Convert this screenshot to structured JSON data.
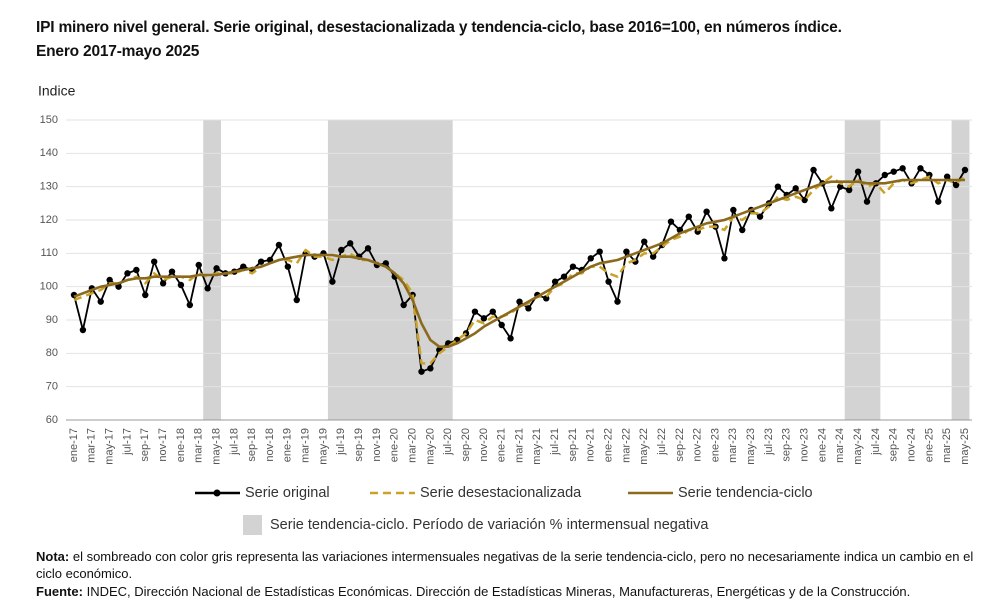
{
  "chart_data": {
    "type": "line",
    "title": "IPI minero nivel general. Serie original, desestacionalizada y tendencia-ciclo, base 2016=100, en números índice. Enero 2017-mayo 2025",
    "y_label": "Indice",
    "categories": [
      "ene-17",
      null,
      "mar-17",
      null,
      "may-17",
      null,
      "jul-17",
      null,
      "sep-17",
      null,
      "nov-17",
      null,
      "ene-18",
      null,
      "mar-18",
      null,
      "may-18",
      null,
      "jul-18",
      null,
      "sep-18",
      null,
      "nov-18",
      null,
      "ene-19",
      null,
      "mar-19",
      null,
      "may-19",
      null,
      "jul-19",
      null,
      "sep-19",
      null,
      "nov-19",
      null,
      "ene-20",
      null,
      "mar-20",
      null,
      "may-20",
      null,
      "jul-20",
      null,
      "sep-20",
      null,
      "nov-20",
      null,
      "ene-21",
      null,
      "mar-21",
      null,
      "may-21",
      null,
      "jul-21",
      null,
      "sep-21",
      null,
      "nov-21",
      null,
      "ene-22",
      null,
      "mar-22",
      null,
      "may-22",
      null,
      "jul-22",
      null,
      "sep-22",
      null,
      "nov-22",
      null,
      "ene-23",
      null,
      "mar-23",
      null,
      "may-23",
      null,
      "jul-23",
      null,
      "sep-23",
      null,
      "nov-23",
      null,
      "ene-24",
      null,
      "mar-24",
      null,
      "may-24",
      null,
      "jul-24",
      null,
      "sep-24",
      null,
      "nov-24",
      null,
      "ene-25",
      null,
      "mar-25",
      null,
      "may-25"
    ],
    "series": [
      {
        "name": "Serie original",
        "color": "#000000",
        "dash": false,
        "markers": true,
        "values": [
          97.5,
          87,
          99.5,
          95.5,
          102,
          100,
          104,
          105,
          97.5,
          107.5,
          101,
          104.5,
          100.5,
          94.5,
          106.5,
          99.5,
          105.5,
          104,
          104.5,
          106,
          105,
          107.5,
          108,
          112.5,
          106,
          96,
          110,
          109,
          110,
          101.5,
          111,
          113,
          109,
          111.5,
          106.5,
          107,
          103,
          94.5,
          97.5,
          74.5,
          75.5,
          81,
          83,
          84,
          86,
          92.5,
          90.5,
          92.5,
          88.5,
          84.5,
          95.5,
          93.5,
          97.5,
          96.5,
          101.5,
          103,
          106,
          105,
          108.5,
          110.5,
          101.5,
          95.5,
          110.5,
          107.5,
          113.5,
          109,
          112.5,
          119.5,
          117,
          121,
          116.5,
          122.5,
          118,
          108.5,
          123,
          117,
          123,
          121,
          125,
          130,
          127.5,
          129.5,
          126,
          135,
          131,
          123.5,
          130,
          129,
          134.5,
          125.5,
          131,
          133.5,
          134.5,
          135.5,
          131,
          135.5,
          133.5,
          125.5,
          133,
          130.5,
          135
        ]
      },
      {
        "name": "Serie desestacionalizada",
        "color": "#c9a227",
        "dash": true,
        "markers": false,
        "values": [
          96,
          97,
          98,
          99,
          101,
          101,
          102,
          103,
          101,
          104,
          102,
          103,
          103,
          102,
          104,
          103,
          104,
          104,
          104,
          105,
          104,
          106,
          107,
          108,
          108,
          107,
          111,
          109,
          109,
          108,
          109,
          110,
          108,
          108,
          107,
          106,
          104,
          102,
          98,
          77,
          77,
          80,
          82,
          84,
          86,
          90,
          89,
          91,
          91,
          92,
          94,
          95,
          97,
          97,
          100,
          101,
          104,
          104,
          106,
          106,
          104,
          103,
          107,
          108,
          110,
          110,
          112,
          114,
          115,
          117,
          117,
          118,
          118,
          117,
          121,
          120,
          122,
          122,
          124,
          127,
          126,
          127,
          126,
          129,
          131,
          133,
          131,
          130,
          132,
          130,
          131,
          128,
          131,
          132,
          131,
          132,
          133,
          131,
          132,
          131,
          133
        ]
      },
      {
        "name": "Serie tendencia-ciclo",
        "color": "#8b6a1e",
        "dash": false,
        "markers": false,
        "values": [
          97,
          98,
          99,
          100,
          100.5,
          101,
          102,
          102.5,
          102.5,
          103,
          103,
          103,
          103,
          103,
          103.5,
          103.5,
          103.5,
          104,
          104.5,
          105,
          105.5,
          106,
          107,
          108,
          108.5,
          109,
          109.5,
          109.5,
          109.5,
          109.5,
          109,
          109,
          108.5,
          108,
          107,
          106,
          104,
          101,
          96,
          89,
          84,
          82,
          82,
          83,
          84.5,
          86,
          88,
          89.5,
          91,
          92.5,
          94,
          95.5,
          97,
          98.5,
          100,
          101.5,
          103,
          104.5,
          106,
          107,
          107.5,
          108,
          109,
          110,
          111,
          112,
          113,
          114.5,
          116,
          117,
          118,
          119,
          119.5,
          120,
          121,
          122,
          123,
          124,
          125,
          126,
          127,
          128,
          129,
          130,
          131,
          131.5,
          131.5,
          131.5,
          131.5,
          131,
          131,
          131,
          131.5,
          132,
          132,
          132,
          132,
          132,
          132,
          132,
          132
        ]
      }
    ],
    "shade": {
      "name": "Serie tendencia-ciclo. Período de variación % intermensual negativa",
      "color": "#d3d3d3",
      "ranges": [
        [
          15,
          16
        ],
        [
          29,
          42
        ],
        [
          87,
          90
        ],
        [
          99,
          100
        ]
      ]
    },
    "ylim": [
      60,
      150
    ],
    "yticks": [
      60,
      70,
      80,
      90,
      100,
      110,
      120,
      130,
      140,
      150
    ],
    "grid": true,
    "note": {
      "label": "Nota:",
      "text": "el sombreado con color gris representa las variaciones intermensuales negativas de la serie tendencia-ciclo, pero no necesariamente indica un cambio en el ciclo económico."
    },
    "source": {
      "label": "Fuente:",
      "text": "INDEC, Dirección Nacional de Estadísticas Económicas. Dirección de Estadísticas Mineras, Manufactureras, Energéticas y de la Construcción."
    }
  }
}
